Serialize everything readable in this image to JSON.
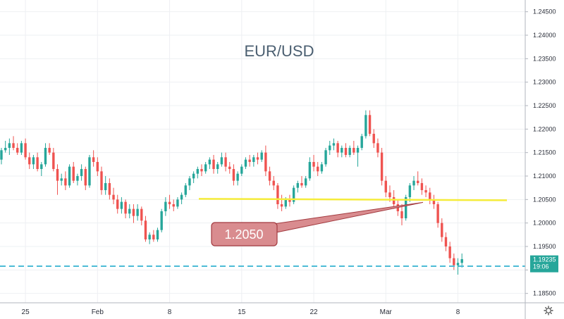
{
  "chart_data": {
    "type": "candlestick",
    "title": "EUR/USD",
    "ylim": [
      1.183,
      1.2475
    ],
    "y_ticks": [
      "1.24500",
      "1.24000",
      "1.23500",
      "1.23000",
      "1.22500",
      "1.22000",
      "1.21500",
      "1.21000",
      "1.20500",
      "1.20000",
      "1.19500",
      "1.19000",
      "1.18500"
    ],
    "x_ticks": [
      {
        "label": "25",
        "index": 6
      },
      {
        "label": "Feb",
        "index": 24
      },
      {
        "label": "8",
        "index": 42
      },
      {
        "label": "15",
        "index": 60
      },
      {
        "label": "22",
        "index": 78
      },
      {
        "label": "Mar",
        "index": 96
      },
      {
        "label": "8",
        "index": 114
      }
    ],
    "candles": [
      [
        1.2135,
        1.216,
        1.2125,
        1.2155
      ],
      [
        1.2155,
        1.2175,
        1.215,
        1.216
      ],
      [
        1.216,
        1.218,
        1.2145,
        1.217
      ],
      [
        1.217,
        1.2185,
        1.2155,
        1.216
      ],
      [
        1.216,
        1.217,
        1.2145,
        1.215
      ],
      [
        1.215,
        1.2175,
        1.2145,
        1.217
      ],
      [
        1.217,
        1.218,
        1.2135,
        1.214
      ],
      [
        1.214,
        1.215,
        1.2115,
        1.2125
      ],
      [
        1.2125,
        1.2145,
        1.2115,
        1.214
      ],
      [
        1.214,
        1.215,
        1.211,
        1.2115
      ],
      [
        1.2115,
        1.213,
        1.21,
        1.2125
      ],
      [
        1.2125,
        1.217,
        1.212,
        1.216
      ],
      [
        1.216,
        1.217,
        1.2145,
        1.215
      ],
      [
        1.215,
        1.216,
        1.211,
        1.2115
      ],
      [
        1.2115,
        1.2125,
        1.206,
        1.209
      ],
      [
        1.209,
        1.2105,
        1.208,
        1.2095
      ],
      [
        1.2095,
        1.211,
        1.207,
        1.208
      ],
      [
        1.208,
        1.2125,
        1.2075,
        1.212
      ],
      [
        1.212,
        1.213,
        1.2085,
        1.209
      ],
      [
        1.209,
        1.2105,
        1.208,
        1.21
      ],
      [
        1.21,
        1.2125,
        1.209,
        1.2115
      ],
      [
        1.2115,
        1.212,
        1.207,
        1.208
      ],
      [
        1.208,
        1.2145,
        1.2075,
        1.214
      ],
      [
        1.214,
        1.2155,
        1.212,
        1.213
      ],
      [
        1.213,
        1.214,
        1.21,
        1.211
      ],
      [
        1.211,
        1.212,
        1.206,
        1.207
      ],
      [
        1.207,
        1.21,
        1.206,
        1.2085
      ],
      [
        1.2085,
        1.2095,
        1.205,
        1.206
      ],
      [
        1.206,
        1.2075,
        1.204,
        1.205
      ],
      [
        1.205,
        1.206,
        1.202,
        1.203
      ],
      [
        1.203,
        1.2055,
        1.202,
        1.2045
      ],
      [
        1.2045,
        1.205,
        1.201,
        1.202
      ],
      [
        1.202,
        1.204,
        1.201,
        1.203
      ],
      [
        1.203,
        1.204,
        1.2,
        1.2015
      ],
      [
        1.2015,
        1.204,
        1.2005,
        1.203
      ],
      [
        1.203,
        1.2035,
        1.1995,
        1.2005
      ],
      [
        1.2005,
        1.2015,
        1.196,
        1.1965
      ],
      [
        1.1965,
        1.198,
        1.1955,
        1.1975
      ],
      [
        1.1975,
        1.1985,
        1.196,
        1.1965
      ],
      [
        1.1965,
        1.199,
        1.196,
        1.1985
      ],
      [
        1.1985,
        1.203,
        1.198,
        1.2025
      ],
      [
        1.2025,
        1.2055,
        1.2015,
        1.2045
      ],
      [
        1.2045,
        1.206,
        1.203,
        1.204
      ],
      [
        1.204,
        1.205,
        1.2025,
        1.2035
      ],
      [
        1.2035,
        1.2055,
        1.203,
        1.205
      ],
      [
        1.205,
        1.2065,
        1.204,
        1.206
      ],
      [
        1.206,
        1.2085,
        1.2055,
        1.208
      ],
      [
        1.208,
        1.21,
        1.207,
        1.2095
      ],
      [
        1.2095,
        1.211,
        1.2085,
        1.2105
      ],
      [
        1.2105,
        1.212,
        1.2095,
        1.2115
      ],
      [
        1.2115,
        1.2125,
        1.21,
        1.211
      ],
      [
        1.211,
        1.213,
        1.2105,
        1.2125
      ],
      [
        1.2125,
        1.214,
        1.2115,
        1.2135
      ],
      [
        1.2135,
        1.2145,
        1.2105,
        1.2115
      ],
      [
        1.2115,
        1.213,
        1.2105,
        1.2125
      ],
      [
        1.2125,
        1.215,
        1.212,
        1.214
      ],
      [
        1.214,
        1.215,
        1.211,
        1.212
      ],
      [
        1.212,
        1.213,
        1.2105,
        1.2115
      ],
      [
        1.2115,
        1.2125,
        1.208,
        1.209
      ],
      [
        1.209,
        1.211,
        1.208,
        1.2105
      ],
      [
        1.2105,
        1.2125,
        1.21,
        1.212
      ],
      [
        1.212,
        1.214,
        1.2115,
        1.2135
      ],
      [
        1.2135,
        1.2145,
        1.212,
        1.213
      ],
      [
        1.213,
        1.2145,
        1.212,
        1.214
      ],
      [
        1.214,
        1.215,
        1.2125,
        1.2135
      ],
      [
        1.2135,
        1.2155,
        1.213,
        1.215
      ],
      [
        1.215,
        1.2165,
        1.21,
        1.211
      ],
      [
        1.211,
        1.212,
        1.208,
        1.209
      ],
      [
        1.209,
        1.21,
        1.207,
        1.208
      ],
      [
        1.208,
        1.2085,
        1.203,
        1.204
      ],
      [
        1.204,
        1.206,
        1.2025,
        1.2035
      ],
      [
        1.2035,
        1.2055,
        1.203,
        1.205
      ],
      [
        1.205,
        1.206,
        1.2035,
        1.2045
      ],
      [
        1.2045,
        1.208,
        1.204,
        1.2075
      ],
      [
        1.2075,
        1.209,
        1.2065,
        1.2085
      ],
      [
        1.2085,
        1.21,
        1.2075,
        1.208
      ],
      [
        1.208,
        1.21,
        1.2075,
        1.2095
      ],
      [
        1.2095,
        1.214,
        1.209,
        1.213
      ],
      [
        1.213,
        1.2145,
        1.211,
        1.212
      ],
      [
        1.212,
        1.213,
        1.21,
        1.211
      ],
      [
        1.211,
        1.213,
        1.2105,
        1.2125
      ],
      [
        1.2125,
        1.216,
        1.212,
        1.2155
      ],
      [
        1.2155,
        1.2175,
        1.2145,
        1.2165
      ],
      [
        1.2165,
        1.218,
        1.2155,
        1.217
      ],
      [
        1.217,
        1.2175,
        1.214,
        1.215
      ],
      [
        1.215,
        1.2165,
        1.214,
        1.216
      ],
      [
        1.216,
        1.217,
        1.214,
        1.2145
      ],
      [
        1.2145,
        1.2165,
        1.214,
        1.216
      ],
      [
        1.216,
        1.2175,
        1.2145,
        1.215
      ],
      [
        1.215,
        1.2165,
        1.212,
        1.216
      ],
      [
        1.216,
        1.219,
        1.2155,
        1.2185
      ],
      [
        1.2185,
        1.224,
        1.218,
        1.223
      ],
      [
        1.223,
        1.224,
        1.2185,
        1.219
      ],
      [
        1.219,
        1.22,
        1.216,
        1.217
      ],
      [
        1.217,
        1.218,
        1.214,
        1.215
      ],
      [
        1.215,
        1.216,
        1.208,
        1.209
      ],
      [
        1.209,
        1.21,
        1.2055,
        1.2065
      ],
      [
        1.2065,
        1.208,
        1.2045,
        1.2055
      ],
      [
        1.2055,
        1.207,
        1.203,
        1.204
      ],
      [
        1.204,
        1.205,
        1.2015,
        1.2025
      ],
      [
        1.2025,
        1.204,
        1.1995,
        1.201
      ],
      [
        1.201,
        1.206,
        1.2005,
        1.2055
      ],
      [
        1.2055,
        1.2085,
        1.2045,
        1.208
      ],
      [
        1.208,
        1.21,
        1.207,
        1.209
      ],
      [
        1.209,
        1.211,
        1.208,
        1.2085
      ],
      [
        1.2085,
        1.2095,
        1.206,
        1.207
      ],
      [
        1.207,
        1.208,
        1.2055,
        1.2065
      ],
      [
        1.2065,
        1.2075,
        1.204,
        1.205
      ],
      [
        1.205,
        1.206,
        1.203,
        1.204
      ],
      [
        1.204,
        1.2045,
        1.199,
        1.2
      ],
      [
        1.2,
        1.201,
        1.196,
        1.197
      ],
      [
        1.197,
        1.198,
        1.194,
        1.195
      ],
      [
        1.195,
        1.196,
        1.1915,
        1.1925
      ],
      [
        1.1925,
        1.1935,
        1.19,
        1.191
      ],
      [
        1.191,
        1.1925,
        1.189,
        1.1915
      ],
      [
        1.1915,
        1.1935,
        1.1905,
        1.1923
      ]
    ],
    "support_line": {
      "value": 1.205,
      "color": "#f5ec3a"
    },
    "dashed_line": {
      "value": 1.1908,
      "color": "#4dbcd6"
    },
    "callout": {
      "label": "1.2050",
      "color": "#d98c8f"
    },
    "last_price": {
      "value": "1.19235",
      "time": "19:06",
      "color": "#26a69a"
    }
  },
  "colors": {
    "up": "#26a69a",
    "down": "#ef5350",
    "grid": "#eef0f3",
    "axis": "#b2b5be"
  },
  "icons": {
    "settings": "gear-icon"
  }
}
